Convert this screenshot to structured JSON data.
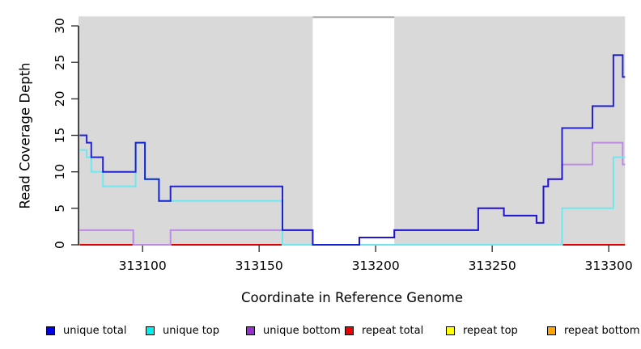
{
  "chart_data": {
    "type": "line",
    "step": true,
    "title": "",
    "xlabel": "Coordinate in Reference Genome",
    "ylabel": "Read Coverage Depth",
    "xlim": [
      313072.5,
      313307
    ],
    "ylim": [
      0,
      31.3
    ],
    "xticks": [
      313100,
      313150,
      313200,
      313250,
      313300
    ],
    "yticks": [
      0,
      5,
      10,
      15,
      20,
      25,
      30
    ],
    "grid": false,
    "plot_background": "#ffffff",
    "covered_region_color": "#d9d9d9",
    "gap_region": {
      "from": 313173,
      "to": 313208,
      "color": "#ffffff",
      "top_border_color": "#a8a8a8"
    },
    "series": [
      {
        "name": "unique total",
        "color": "#0000cd",
        "points": [
          [
            313073,
            15
          ],
          [
            313076,
            14
          ],
          [
            313078,
            12
          ],
          [
            313083,
            10
          ],
          [
            313097,
            14
          ],
          [
            313101,
            9
          ],
          [
            313107,
            6
          ],
          [
            313112,
            8
          ],
          [
            313160,
            2
          ],
          [
            313173,
            0
          ],
          [
            313193,
            1
          ],
          [
            313208,
            2
          ],
          [
            313244,
            5
          ],
          [
            313255,
            4
          ],
          [
            313269,
            3
          ],
          [
            313272,
            8
          ],
          [
            313274,
            9
          ],
          [
            313280,
            16
          ],
          [
            313293,
            19
          ],
          [
            313302,
            26
          ],
          [
            313306,
            23
          ],
          [
            313307,
            23
          ]
        ]
      },
      {
        "name": "unique top",
        "color": "#70e7ee",
        "points": [
          [
            313073,
            13
          ],
          [
            313076,
            12
          ],
          [
            313078,
            10
          ],
          [
            313083,
            8
          ],
          [
            313097,
            14
          ],
          [
            313101,
            9
          ],
          [
            313107,
            6
          ],
          [
            313160,
            0
          ],
          [
            313280,
            5
          ],
          [
            313302,
            12
          ],
          [
            313307,
            12
          ]
        ]
      },
      {
        "name": "unique bottom",
        "color": "#bd8be4",
        "points": [
          [
            313073,
            2
          ],
          [
            313096,
            0
          ],
          [
            313112,
            2
          ],
          [
            313173,
            0
          ],
          [
            313193,
            1
          ],
          [
            313208,
            2
          ],
          [
            313244,
            5
          ],
          [
            313255,
            4
          ],
          [
            313269,
            3
          ],
          [
            313272,
            8
          ],
          [
            313274,
            9
          ],
          [
            313280,
            11
          ],
          [
            313293,
            14
          ],
          [
            313306,
            11
          ],
          [
            313307,
            11
          ]
        ]
      },
      {
        "name": "repeat total",
        "color": "#dd0000",
        "points": [
          [
            313073,
            0
          ],
          [
            313307,
            0
          ]
        ]
      },
      {
        "name": "repeat top",
        "color": "#f5f500",
        "points": [
          [
            313073,
            0
          ],
          [
            313307,
            0
          ]
        ]
      },
      {
        "name": "repeat bottom",
        "color": "#ffa500",
        "points": [
          [
            313073,
            0
          ],
          [
            313307,
            0
          ]
        ]
      }
    ]
  },
  "legend": {
    "items": [
      {
        "label": "unique total",
        "swatch_color": "#0000e0"
      },
      {
        "label": "unique top",
        "swatch_color": "#00eeee"
      },
      {
        "label": "unique bottom",
        "swatch_color": "#9932cc"
      },
      {
        "label": "repeat total",
        "swatch_color": "#ee0000"
      },
      {
        "label": "repeat top",
        "swatch_color": "#ffff00"
      },
      {
        "label": "repeat bottom",
        "swatch_color": "#ffa500"
      }
    ]
  },
  "axes": {
    "x_tick_labels": [
      "313100",
      "313150",
      "313200",
      "313250",
      "313300"
    ],
    "y_tick_labels": [
      "0",
      "5",
      "10",
      "15",
      "20",
      "25",
      "30"
    ]
  }
}
